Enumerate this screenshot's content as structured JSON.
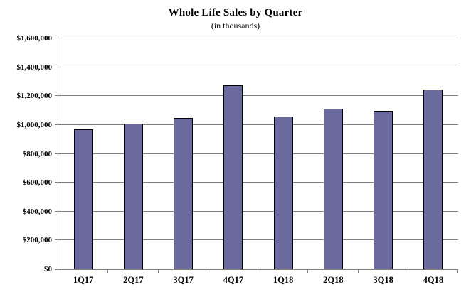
{
  "chart_data": {
    "type": "bar",
    "title": "Whole Life Sales by Quarter",
    "subtitle": "(in thousands)",
    "categories": [
      "1Q17",
      "2Q17",
      "3Q17",
      "4Q17",
      "1Q18",
      "2Q18",
      "3Q18",
      "4Q18"
    ],
    "values": [
      970000,
      1010000,
      1050000,
      1275000,
      1060000,
      1115000,
      1100000,
      1245000
    ],
    "xlabel": "",
    "ylabel": "",
    "ylim": [
      0,
      1600000
    ],
    "ytick_step": 200000,
    "yticks": [
      {
        "value": 0,
        "label": "$0"
      },
      {
        "value": 200000,
        "label": "$200,000"
      },
      {
        "value": 400000,
        "label": "$400,000"
      },
      {
        "value": 600000,
        "label": "$600,000"
      },
      {
        "value": 800000,
        "label": "$800,000"
      },
      {
        "value": 1000000,
        "label": "$1,000,000"
      },
      {
        "value": 1200000,
        "label": "$1,200,000"
      },
      {
        "value": 1400000,
        "label": "$1,400,000"
      },
      {
        "value": 1600000,
        "label": "$1,600,000"
      }
    ],
    "grid": true,
    "legend": "none",
    "colors": {
      "bar_fill": "#6A6A9E",
      "bar_border": "#000000",
      "gridline": "#808080",
      "axis": "#808080",
      "text": "#000000",
      "background": "#FFFFFF"
    }
  }
}
